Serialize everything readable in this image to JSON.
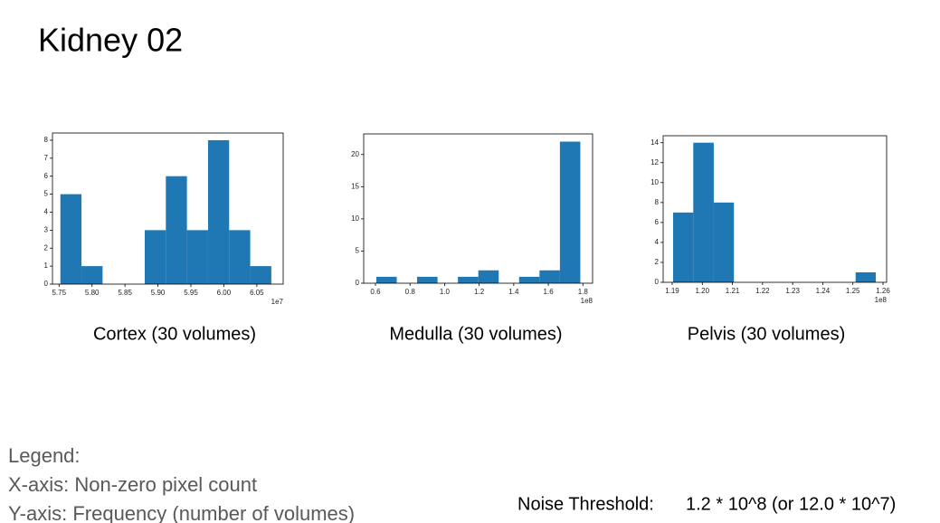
{
  "title": "Kidney 02",
  "legend": {
    "heading": "Legend:",
    "x_axis": "X-axis: Non-zero pixel count",
    "y_axis": "Y-axis: Frequency (number of volumes)"
  },
  "noise_threshold": {
    "label": "Noise Threshold:",
    "value": "1.2 * 10^8 (or 12.0 * 10^7)"
  },
  "chart_data": [
    {
      "type": "histogram",
      "caption": "Cortex (30 volumes)",
      "color": "#1f77b4",
      "bins": [
        5.752,
        5.784,
        5.816,
        5.848,
        5.88,
        5.912,
        5.944,
        5.976,
        6.008,
        6.04,
        6.072
      ],
      "counts": [
        5,
        1,
        0,
        0,
        3,
        6,
        3,
        8,
        3,
        1
      ],
      "xlim": [
        5.74,
        6.09
      ],
      "ylim": [
        0,
        8.4
      ],
      "xticks": [
        5.75,
        {
          "value": 5.8,
          "label": "5.80"
        },
        5.85,
        {
          "value": 5.9,
          "label": "5.90"
        },
        5.95,
        {
          "value": 6.0,
          "label": "6.00"
        },
        6.05
      ],
      "yticks": [
        0,
        1,
        2,
        3,
        4,
        5,
        6,
        7,
        8
      ],
      "x_offset_label": "1e7"
    },
    {
      "type": "histogram",
      "caption": "Medulla (30 volumes)",
      "color": "#1f77b4",
      "bins": [
        0.605,
        0.723,
        0.841,
        0.959,
        1.077,
        1.195,
        1.313,
        1.431,
        1.549,
        1.667,
        1.785
      ],
      "counts": [
        1,
        0,
        1,
        0,
        1,
        2,
        0,
        1,
        2,
        22
      ],
      "xlim": [
        0.532,
        1.856
      ],
      "ylim": [
        0,
        23.2
      ],
      "xticks": [
        0.6,
        0.8,
        {
          "value": 1.0,
          "label": "1.0"
        },
        1.2,
        1.4,
        1.6,
        1.8
      ],
      "yticks": [
        0,
        5,
        10,
        15,
        20
      ],
      "x_offset_label": "1e8"
    },
    {
      "type": "histogram",
      "caption": "Pelvis (30 volumes)",
      "color": "#1f77b4",
      "bins": [
        1.1903,
        1.197,
        1.2038,
        1.2105,
        1.2172,
        1.224,
        1.2307,
        1.2374,
        1.2441,
        1.2509,
        1.2576
      ],
      "counts": [
        7,
        14,
        8,
        0,
        0,
        0,
        0,
        0,
        0,
        1
      ],
      "xlim": [
        1.187,
        1.2612
      ],
      "ylim": [
        0,
        14.7
      ],
      "xticks": [
        1.19,
        {
          "value": 1.2,
          "label": "1.20"
        },
        1.21,
        1.22,
        1.23,
        1.24,
        1.25,
        1.26
      ],
      "yticks": [
        0,
        2,
        4,
        6,
        8,
        10,
        12,
        14
      ],
      "x_offset_label": "1e8"
    }
  ]
}
